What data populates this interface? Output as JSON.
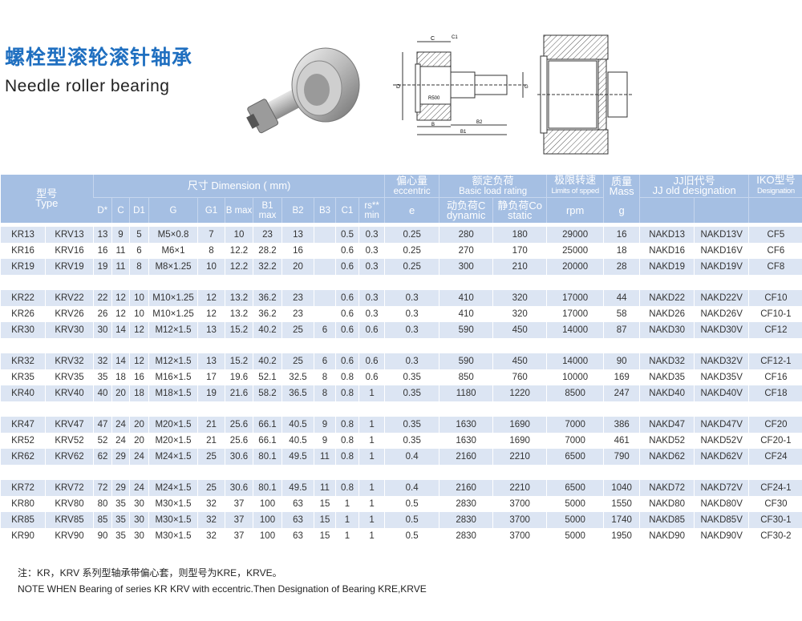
{
  "header": {
    "title_cn": "螺栓型滚轮滚针轴承",
    "title_en": "Needle roller bearing"
  },
  "drawing": {
    "labels": [
      "C",
      "C1",
      "B3",
      "W",
      "d1",
      "D",
      "M",
      "R500",
      "D",
      "M",
      "G",
      "G1",
      "B",
      "B2",
      "B1"
    ]
  },
  "table": {
    "colors": {
      "header_bg": "#a5bfe3",
      "stripe_bg": "#dce5f3"
    },
    "head": {
      "type_cn": "型号",
      "type_en": "Type",
      "dimension": "尺寸 Dimension ( mm)",
      "dim_cols": [
        "D*",
        "C",
        "D1",
        "G",
        "G1",
        "B max",
        "B1 max",
        "B2",
        "B3",
        "C1",
        "rs** min"
      ],
      "eccentric_cn": "偏心量",
      "eccentric_en": "eccentric",
      "eccentric_unit": "e",
      "load_cn": "额定负荷",
      "load_en": "Basic load rating",
      "dynamic_cn": "动负荷C",
      "dynamic_en": "dynamic",
      "static_cn": "静负荷Co",
      "static_en": "static",
      "speed_cn": "极限转速",
      "speed_en": "Limits of spped",
      "speed_unit": "rpm",
      "mass_cn": "质量",
      "mass_en": "Mass",
      "mass_unit": "g",
      "jj_cn": "JJ旧代号",
      "jj_en": "JJ old designation",
      "iko_cn": "IKO型号",
      "iko_en": "Designation"
    },
    "groups": [
      [
        [
          "KR13",
          "KRV13",
          "13",
          "9",
          "5",
          "M5×0.8",
          "7",
          "10",
          "23",
          "13",
          "",
          "0.5",
          "0.3",
          "0.25",
          "280",
          "180",
          "29000",
          "16",
          "NAKD13",
          "NAKD13V",
          "CF5"
        ],
        [
          "KR16",
          "KRV16",
          "16",
          "11",
          "6",
          "M6×1",
          "8",
          "12.2",
          "28.2",
          "16",
          "",
          "0.6",
          "0.3",
          "0.25",
          "270",
          "170",
          "25000",
          "18",
          "NAKD16",
          "NAKD16V",
          "CF6"
        ],
        [
          "KR19",
          "KRV19",
          "19",
          "11",
          "8",
          "M8×1.25",
          "10",
          "12.2",
          "32.2",
          "20",
          "",
          "0.6",
          "0.3",
          "0.25",
          "300",
          "210",
          "20000",
          "28",
          "NAKD19",
          "NAKD19V",
          "CF8"
        ]
      ],
      [
        [
          "KR22",
          "KRV22",
          "22",
          "12",
          "10",
          "M10×1.25",
          "12",
          "13.2",
          "36.2",
          "23",
          "",
          "0.6",
          "0.3",
          "0.3",
          "410",
          "320",
          "17000",
          "44",
          "NAKD22",
          "NAKD22V",
          "CF10"
        ],
        [
          "KR26",
          "KRV26",
          "26",
          "12",
          "10",
          "M10×1.25",
          "12",
          "13.2",
          "36.2",
          "23",
          "",
          "0.6",
          "0.3",
          "0.3",
          "410",
          "320",
          "17000",
          "58",
          "NAKD26",
          "NAKD26V",
          "CF10-1"
        ],
        [
          "KR30",
          "KRV30",
          "30",
          "14",
          "12",
          "M12×1.5",
          "13",
          "15.2",
          "40.2",
          "25",
          "6",
          "0.6",
          "0.6",
          "0.3",
          "590",
          "450",
          "14000",
          "87",
          "NAKD30",
          "NAKD30V",
          "CF12"
        ]
      ],
      [
        [
          "KR32",
          "KRV32",
          "32",
          "14",
          "12",
          "M12×1.5",
          "13",
          "15.2",
          "40.2",
          "25",
          "6",
          "0.6",
          "0.6",
          "0.3",
          "590",
          "450",
          "14000",
          "90",
          "NAKD32",
          "NAKD32V",
          "CF12-1"
        ],
        [
          "KR35",
          "KRV35",
          "35",
          "18",
          "16",
          "M16×1.5",
          "17",
          "19.6",
          "52.1",
          "32.5",
          "8",
          "0.8",
          "0.6",
          "0.35",
          "850",
          "760",
          "10000",
          "169",
          "NAKD35",
          "NAKD35V",
          "CF16"
        ],
        [
          "KR40",
          "KRV40",
          "40",
          "20",
          "18",
          "M18×1.5",
          "19",
          "21.6",
          "58.2",
          "36.5",
          "8",
          "0.8",
          "1",
          "0.35",
          "1180",
          "1220",
          "8500",
          "247",
          "NAKD40",
          "NAKD40V",
          "CF18"
        ]
      ],
      [
        [
          "KR47",
          "KRV47",
          "47",
          "24",
          "20",
          "M20×1.5",
          "21",
          "25.6",
          "66.1",
          "40.5",
          "9",
          "0.8",
          "1",
          "0.35",
          "1630",
          "1690",
          "7000",
          "386",
          "NAKD47",
          "NAKD47V",
          "CF20"
        ],
        [
          "KR52",
          "KRV52",
          "52",
          "24",
          "20",
          "M20×1.5",
          "21",
          "25.6",
          "66.1",
          "40.5",
          "9",
          "0.8",
          "1",
          "0.35",
          "1630",
          "1690",
          "7000",
          "461",
          "NAKD52",
          "NAKD52V",
          "CF20-1"
        ],
        [
          "KR62",
          "KRV62",
          "62",
          "29",
          "24",
          "M24×1.5",
          "25",
          "30.6",
          "80.1",
          "49.5",
          "11",
          "0.8",
          "1",
          "0.4",
          "2160",
          "2210",
          "6500",
          "790",
          "NAKD62",
          "NAKD62V",
          "CF24"
        ]
      ],
      [
        [
          "KR72",
          "KRV72",
          "72",
          "29",
          "24",
          "M24×1.5",
          "25",
          "30.6",
          "80.1",
          "49.5",
          "11",
          "0.8",
          "1",
          "0.4",
          "2160",
          "2210",
          "6500",
          "1040",
          "NAKD72",
          "NAKD72V",
          "CF24-1"
        ],
        [
          "KR80",
          "KRV80",
          "80",
          "35",
          "30",
          "M30×1.5",
          "32",
          "37",
          "100",
          "63",
          "15",
          "1",
          "1",
          "0.5",
          "2830",
          "3700",
          "5000",
          "1550",
          "NAKD80",
          "NAKD80V",
          "CF30"
        ],
        [
          "KR85",
          "KRV85",
          "85",
          "35",
          "30",
          "M30×1.5",
          "32",
          "37",
          "100",
          "63",
          "15",
          "1",
          "1",
          "0.5",
          "2830",
          "3700",
          "5000",
          "1740",
          "NAKD85",
          "NAKD85V",
          "CF30-1"
        ],
        [
          "KR90",
          "KRV90",
          "90",
          "35",
          "30",
          "M30×1.5",
          "32",
          "37",
          "100",
          "63",
          "15",
          "1",
          "1",
          "0.5",
          "2830",
          "3700",
          "5000",
          "1950",
          "NAKD90",
          "NAKD90V",
          "CF30-2"
        ]
      ]
    ]
  },
  "notes": {
    "cn": "注：KR，KRV 系列型轴承带偏心套，则型号为KRE，KRVE。",
    "en": "NOTE WHEN Bearing of series KR KRV with eccentric.Then Designation of Bearing KRE,KRVE"
  }
}
